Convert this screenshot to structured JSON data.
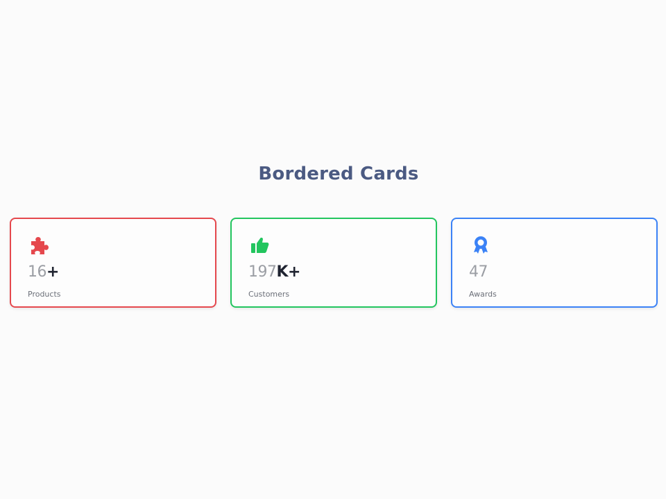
{
  "title": "Bordered Cards",
  "cards": [
    {
      "icon": "puzzle-icon",
      "color": "#e5484d",
      "value": "16",
      "suffix": "+",
      "label": "Products"
    },
    {
      "icon": "thumbs-up-icon",
      "color": "#22c55e",
      "value": "197",
      "suffix": "K+",
      "label": "Customers"
    },
    {
      "icon": "award-icon",
      "color": "#3b82f6",
      "value": "47",
      "suffix": "",
      "label": "Awards"
    }
  ]
}
